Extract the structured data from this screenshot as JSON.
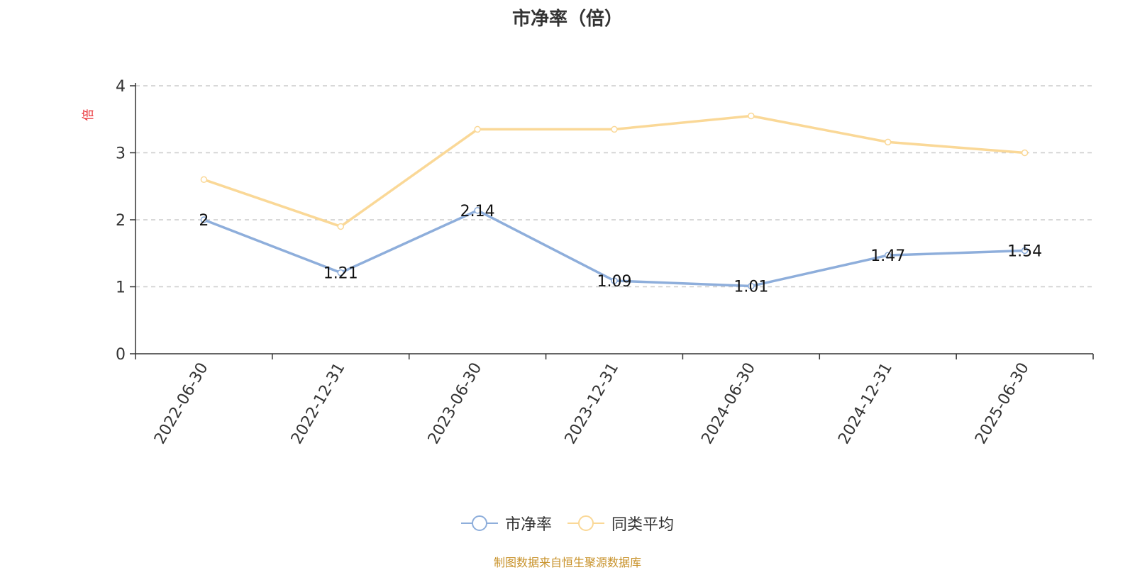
{
  "chart_data": {
    "type": "line",
    "title": "市净率（倍）",
    "ylabel": "倍",
    "xlabel": "",
    "categories": [
      "2022-06-30",
      "2022-12-31",
      "2023-06-30",
      "2023-12-31",
      "2024-06-30",
      "2024-12-31",
      "2025-06-30"
    ],
    "ylim": [
      0,
      4
    ],
    "yticks": [
      0,
      1,
      2,
      3,
      4
    ],
    "grid": true,
    "legend_position": "bottom",
    "series": [
      {
        "name": "市净率",
        "color": "#8eaedb",
        "values": [
          2,
          1.21,
          2.14,
          1.09,
          1.01,
          1.47,
          1.54
        ],
        "data_labels": [
          "2",
          "1.21",
          "2.14",
          "1.09",
          "1.01",
          "1.47",
          "1.54"
        ]
      },
      {
        "name": "同类平均",
        "color": "#fad897",
        "values": [
          2.6,
          1.9,
          3.35,
          3.35,
          3.55,
          3.16,
          3.0
        ],
        "data_labels": []
      }
    ]
  },
  "footer": {
    "source": "制图数据来自恒生聚源数据库"
  },
  "colors": {
    "ylabel": "#e8262b",
    "source": "#c8922a"
  }
}
